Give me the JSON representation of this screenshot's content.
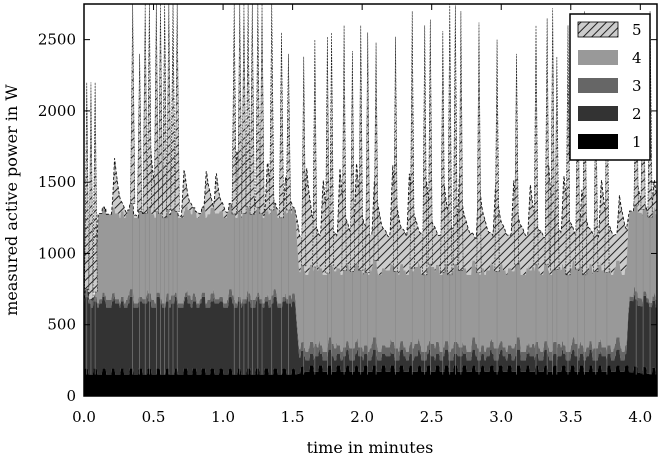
{
  "chart_data": {
    "type": "area",
    "stacked": true,
    "xlabel": "time in minutes",
    "ylabel": "measured active power in W",
    "xlim": [
      0.0,
      4.12
    ],
    "ylim": [
      0,
      2750
    ],
    "xticks": [
      0.0,
      0.5,
      1.0,
      1.5,
      2.0,
      2.5,
      3.0,
      3.5,
      4.0
    ],
    "xtick_labels": [
      "0.0",
      "0.5",
      "1.0",
      "1.5",
      "2.0",
      "2.5",
      "3.0",
      "3.5",
      "4.0"
    ],
    "yticks": [
      0,
      500,
      1000,
      1500,
      2000,
      2500
    ],
    "ytick_labels": [
      "0",
      "500",
      "1000",
      "1500",
      "2000",
      "2500"
    ],
    "grid": false,
    "legend_position": "top-right",
    "legend_order": [
      "5",
      "4",
      "3",
      "2",
      "1"
    ],
    "series": [
      {
        "name": "1",
        "color": "#000000",
        "x": [
          0.0,
          1.52,
          1.6,
          3.9,
          4.12
        ],
        "values": [
          150,
          150,
          170,
          170,
          150
        ]
      },
      {
        "name": "2",
        "color": "#333333",
        "x": [
          0.0,
          1.52,
          1.55,
          3.9,
          3.92,
          4.12
        ],
        "values": [
          470,
          470,
          80,
          80,
          470,
          470
        ]
      },
      {
        "name": "3",
        "color": "#666666",
        "x": [
          0.0,
          1.52,
          1.55,
          3.9,
          3.92,
          4.12
        ],
        "values": [
          30,
          30,
          60,
          60,
          30,
          30
        ]
      },
      {
        "name": "4",
        "color": "#999999",
        "x": [
          0.0,
          0.08,
          0.1,
          1.52,
          1.55,
          3.9,
          3.92,
          4.12
        ],
        "values": [
          0,
          0,
          600,
          600,
          540,
          540,
          600,
          600
        ]
      },
      {
        "name": "5",
        "color": "#cccccc",
        "hatch": "diagonal",
        "x_spikes": [
          0.02,
          0.05,
          0.08,
          0.35,
          0.4,
          0.44,
          0.47,
          0.52,
          0.55,
          0.58,
          0.61,
          0.64,
          0.67,
          1.08,
          1.12,
          1.15,
          1.18,
          1.21,
          1.25,
          1.28,
          1.35,
          1.42,
          1.47,
          1.58,
          1.66,
          1.75,
          1.78,
          1.87,
          1.93,
          1.99,
          2.04,
          2.1,
          2.24,
          2.36,
          2.45,
          2.49,
          2.58,
          2.63,
          2.67,
          2.71,
          2.84,
          2.97,
          3.11,
          3.25,
          3.33,
          3.37,
          3.4,
          3.48,
          3.55,
          3.6,
          3.68,
          3.76,
          3.97,
          4.02,
          4.07
        ],
        "spike_peaks": [
          2200,
          2200,
          2200,
          2750,
          2400,
          2750,
          2750,
          2750,
          2750,
          2750,
          2750,
          2750,
          2750,
          2750,
          2750,
          2750,
          2750,
          2750,
          2750,
          2750,
          2750,
          2550,
          2400,
          2380,
          2500,
          2520,
          2550,
          2600,
          2420,
          2600,
          2550,
          2480,
          2520,
          2700,
          2600,
          2640,
          2560,
          2750,
          2740,
          2700,
          2620,
          2500,
          2400,
          2600,
          2650,
          2720,
          2380,
          2600,
          2520,
          2700,
          2150,
          2450,
          2500,
          2600,
          2700
        ],
        "peak_times": [
          0.22,
          0.48,
          0.72,
          0.88,
          0.95,
          1.1,
          1.18,
          1.32,
          1.45,
          1.6,
          1.72,
          1.84,
          1.96,
          2.09,
          2.22,
          2.34,
          2.46,
          2.59,
          2.7,
          2.84,
          2.96,
          3.09,
          3.21,
          3.34,
          3.45,
          3.58,
          3.72,
          3.85,
          3.98,
          4.1
        ],
        "peak_heights": [
          1680,
          1740,
          1600,
          1600,
          1570,
          1750,
          1680,
          1660,
          1540,
          1640,
          1520,
          1600,
          1660,
          1560,
          1620,
          1570,
          1550,
          1500,
          1560,
          1530,
          1510,
          1520,
          1500,
          1640,
          1570,
          1460,
          1540,
          1420,
          1500,
          1520
        ],
        "baseline_top": [
          [
            0.0,
            600
          ],
          [
            0.08,
            620
          ],
          [
            0.1,
            1260
          ],
          [
            1.52,
            1260
          ],
          [
            1.55,
            1100
          ],
          [
            3.9,
            1100
          ],
          [
            3.92,
            1260
          ],
          [
            4.12,
            1260
          ]
        ]
      }
    ]
  }
}
